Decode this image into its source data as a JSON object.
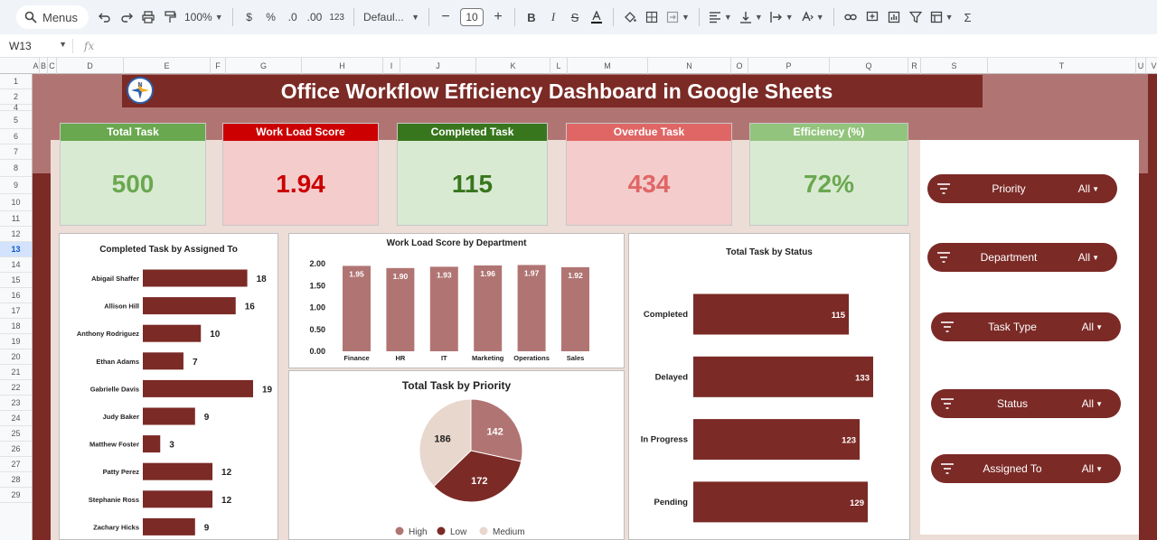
{
  "toolbar": {
    "menus_label": "Menus",
    "zoom": "100%",
    "currency": "$",
    "percent": "%",
    "decrease_decimal": ".0",
    "increase_decimal": ".00",
    "number_format": "123",
    "font": "Defaul...",
    "font_size": "10"
  },
  "formula_bar": {
    "cell_ref": "W13",
    "fx": "fx"
  },
  "columns": [
    "A",
    "B",
    "C",
    "D",
    "E",
    "F",
    "G",
    "H",
    "I",
    "J",
    "K",
    "L",
    "M",
    "N",
    "O",
    "P",
    "Q",
    "R",
    "S",
    "T",
    "U",
    "V"
  ],
  "rows": [
    "1",
    "2",
    "4",
    "5",
    "6",
    "7",
    "8",
    "9",
    "10",
    "11",
    "12",
    "13",
    "14",
    "15",
    "16",
    "17",
    "18",
    "19",
    "20",
    "21",
    "22",
    "23",
    "24",
    "25",
    "26",
    "27",
    "28",
    "29"
  ],
  "selected_row": "13",
  "dashboard": {
    "title": "Office Workflow Efficiency Dashboard in Google Sheets",
    "logo_letters": "N"
  },
  "kpis": [
    {
      "label": "Total Task",
      "value": "500",
      "head_color": "#6aa84f",
      "bg": "#d9ead3",
      "value_color": "#6aa84f"
    },
    {
      "label": "Work Load Score",
      "value": "1.94",
      "head_color": "#cc0000",
      "bg": "#f4cccc",
      "value_color": "#cc0000"
    },
    {
      "label": "Completed Task",
      "value": "115",
      "head_color": "#38761d",
      "bg": "#d9ead3",
      "value_color": "#38761d"
    },
    {
      "label": "Overdue Task",
      "value": "434",
      "head_color": "#e06666",
      "bg": "#f4cccc",
      "value_color": "#e06666"
    },
    {
      "label": "Efficiency (%)",
      "value": "72%",
      "head_color": "#93c47d",
      "bg": "#d9ead3",
      "value_color": "#6aa84f"
    }
  ],
  "charts": {
    "assigned": {
      "title": "Completed Task by Assigned To",
      "type": "bar",
      "categories": [
        "Abigail Shaffer",
        "Allison Hill",
        "Anthony Rodriguez",
        "Ethan Adams",
        "Gabrielle Davis",
        "Judy Baker",
        "Matthew Foster",
        "Patty Perez",
        "Stephanie Ross",
        "Zachary Hicks"
      ],
      "values": [
        18,
        16,
        10,
        7,
        19,
        9,
        3,
        12,
        12,
        9
      ],
      "color": "#7b2a26"
    },
    "workload": {
      "title": "Work Load Score by Department",
      "type": "bar",
      "categories": [
        "Finance",
        "HR",
        "IT",
        "Marketing",
        "Operations",
        "Sales"
      ],
      "values": [
        1.95,
        1.9,
        1.93,
        1.96,
        1.97,
        1.92
      ],
      "value_labels": [
        "1.95",
        "1.90",
        "1.93",
        "1.96",
        "1.97",
        "1.92"
      ],
      "yticks": [
        "2.00",
        "1.50",
        "1.00",
        "0.50",
        "0.00"
      ],
      "ylim": [
        0,
        2
      ],
      "color": "#b07573"
    },
    "status": {
      "title": "Total Task by Status",
      "type": "bar",
      "categories": [
        "Completed",
        "Delayed",
        "In Progress",
        "Pending"
      ],
      "values": [
        115,
        133,
        123,
        129
      ],
      "color": "#7b2a26"
    },
    "priority": {
      "title": "Total Task by Priority",
      "type": "pie",
      "slices": [
        {
          "name": "High",
          "value": 142,
          "color": "#b07573"
        },
        {
          "name": "Low",
          "value": 172,
          "color": "#7b2a26"
        },
        {
          "name": "Medium",
          "value": 186,
          "color": "#e8d7cd"
        }
      ]
    }
  },
  "filters": [
    {
      "label": "Priority",
      "value": "All"
    },
    {
      "label": "Department",
      "value": "All"
    },
    {
      "label": "Task Type",
      "value": "All"
    },
    {
      "label": "Status",
      "value": "All"
    },
    {
      "label": "Assigned To",
      "value": "All"
    }
  ]
}
